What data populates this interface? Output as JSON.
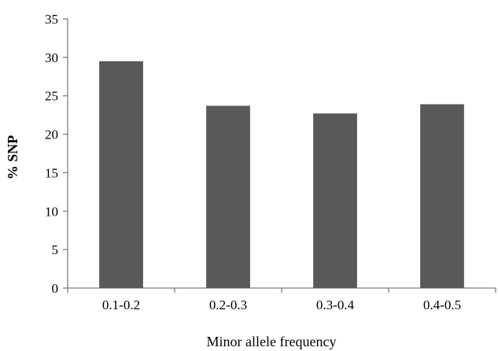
{
  "chart_data": {
    "type": "bar",
    "title": "",
    "xlabel": "Minor allele frequency",
    "ylabel": "% SNP",
    "categories": [
      "0.1-0.2",
      "0.2-0.3",
      "0.3-0.4",
      "0.4-0.5"
    ],
    "values": [
      29.5,
      23.7,
      22.7,
      23.9
    ],
    "ylim": [
      0,
      35
    ],
    "yticks": [
      "0",
      "5",
      "10",
      "15",
      "20",
      "25",
      "30",
      "35"
    ],
    "grid": false,
    "legend": "none",
    "bar_color": "#595959"
  }
}
